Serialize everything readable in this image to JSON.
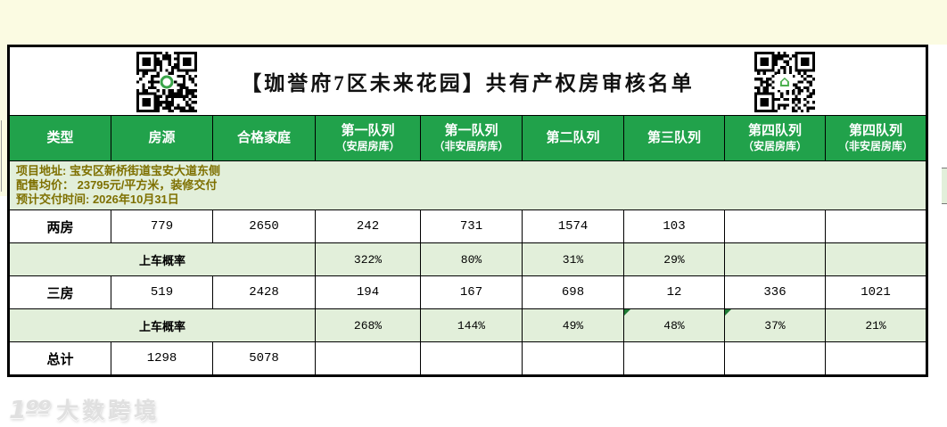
{
  "title": "【珈誉府7区未来花园】共有产权房审核名单",
  "colors": {
    "header_green": "#21A24B",
    "row_light_green": "#E2EFDA",
    "info_text_olive": "#7E7000",
    "border_black": "#000000",
    "qr_logo_green": "#3AA54A"
  },
  "icons": {
    "qr_left": "qr-code",
    "qr_left_logo": "circle-ring-logo",
    "qr_right": "qr-code",
    "qr_right_logo": "home-icon"
  },
  "header": {
    "columns": [
      {
        "label": "类型",
        "sub": ""
      },
      {
        "label": "房源",
        "sub": ""
      },
      {
        "label": "合格家庭",
        "sub": ""
      },
      {
        "label": "第一队列",
        "sub": "（安居房库）"
      },
      {
        "label": "第一队列",
        "sub": "（非安居房库）"
      },
      {
        "label": "第二队列",
        "sub": ""
      },
      {
        "label": "第三队列",
        "sub": ""
      },
      {
        "label": "第四队列",
        "sub": "（安居房库）"
      },
      {
        "label": "第四队列",
        "sub": "（非安居房库）"
      }
    ]
  },
  "project_info": {
    "lines": [
      "项目地址: 宝安区新桥街道宝安大道东侧",
      "配售均价： 23795元/平方米，装修交付",
      "预计交付时间: 2026年10月31日"
    ]
  },
  "table_rows": [
    {
      "kind": "data",
      "label": "两房",
      "cells": [
        "779",
        "2650",
        "242",
        "731",
        "1574",
        "103",
        "",
        ""
      ]
    },
    {
      "kind": "rate",
      "label": "上车概率",
      "cells": [
        "322%",
        "80%",
        "31%",
        "29%",
        "",
        ""
      ]
    },
    {
      "kind": "data",
      "label": "三房",
      "cells": [
        "519",
        "2428",
        "194",
        "167",
        "698",
        "12",
        "336",
        "1021"
      ]
    },
    {
      "kind": "rate",
      "label": "上车概率",
      "cells": [
        "268%",
        "144%",
        "49%",
        "48%",
        "37%",
        "21%"
      ]
    },
    {
      "kind": "data",
      "label": "总计",
      "cells": [
        "1298",
        "5078",
        "",
        "",
        "",
        "",
        "",
        ""
      ]
    }
  ],
  "watermark": {
    "logo_text": "1ºº",
    "text": "大数跨境"
  }
}
